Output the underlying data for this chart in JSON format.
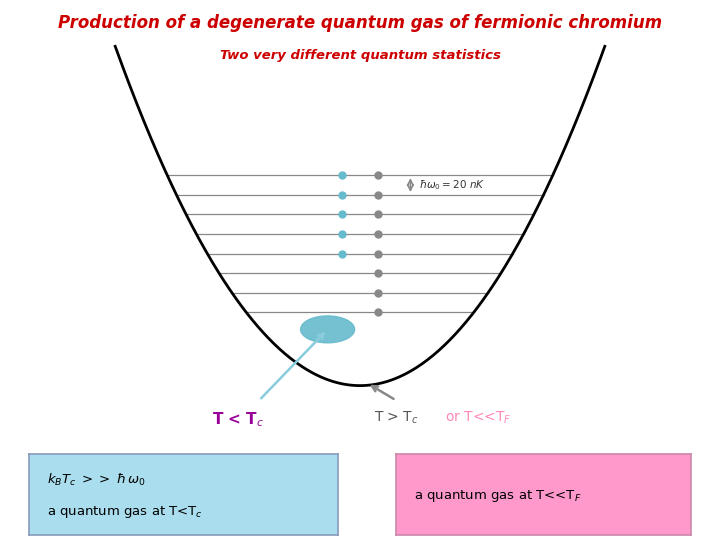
{
  "title": "Production of a degenerate quantum gas of fermionic chromium",
  "subtitle": "Two very different quantum statistics",
  "title_color": "#cc0000",
  "subtitle_color": "#cc0000",
  "bg_color": "#ffffff",
  "pot_color": "#000000",
  "line_color": "#888888",
  "dot_gray_color": "#888888",
  "dot_teal_color": "#66bbcc",
  "blob_color": "#66bbcc",
  "arrow_color": "#888888",
  "label_Tc_less_color": "#990099",
  "label_Tc_greater_color": "#555555",
  "label_TF_color": "#ff88bb",
  "annotation_color": "#333333",
  "box_left_bg": "#aaddee",
  "box_left_border": "#8899bb",
  "box_right_bg": "#ff99cc",
  "box_right_border": "#cc88aa",
  "num_lines": 8,
  "label_Tc_less": "T < T$_c$",
  "label_Tc_greater": "T > T$_c$",
  "label_TF": "or T<<T$_F$",
  "annotation": "$\\hbar\\omega_0 = 20\\ nK$",
  "box_left_eq": "$k_B T_c\\ >>\\ \\hbar\\, \\omega_0$",
  "box_left_desc": "a quantum gas at T<T$_c$",
  "box_right_desc": "a quantum gas at T<<T$_F$"
}
